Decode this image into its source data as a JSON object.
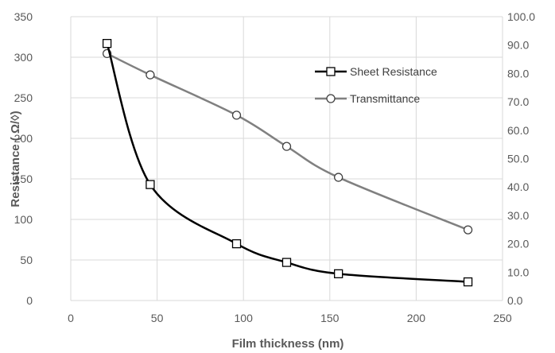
{
  "chart_data": {
    "type": "line",
    "xlabel": "Film thickness (nm)",
    "ylabel": "Resistance ( Ω/◊)",
    "y2label": "",
    "xlim": [
      0,
      250
    ],
    "ylim": [
      0,
      350
    ],
    "y2lim": [
      0,
      100
    ],
    "xticks": [
      "0",
      "50",
      "100",
      "150",
      "200",
      "250"
    ],
    "yticks": [
      "0",
      "50",
      "100",
      "150",
      "200",
      "250",
      "300",
      "350"
    ],
    "y2ticks": [
      "0.0",
      "10.0",
      "20.0",
      "30.0",
      "40.0",
      "50.0",
      "60.0",
      "70.0",
      "80.0",
      "90.0",
      "100.0"
    ],
    "grid": true,
    "legend_position": "top-right",
    "series": [
      {
        "name": "Sheet Resistance",
        "axis": "left",
        "marker": "square",
        "color": "#000000",
        "x": [
          21,
          46,
          96,
          125,
          155,
          230
        ],
        "y": [
          317,
          143,
          70,
          47,
          33,
          23
        ]
      },
      {
        "name": "Transmittance",
        "axis": "right",
        "marker": "circle",
        "color": "#808080",
        "x": [
          21,
          46,
          96,
          125,
          155,
          230
        ],
        "y": [
          87,
          79.5,
          65.3,
          54.3,
          43.4,
          24.9
        ]
      }
    ]
  }
}
